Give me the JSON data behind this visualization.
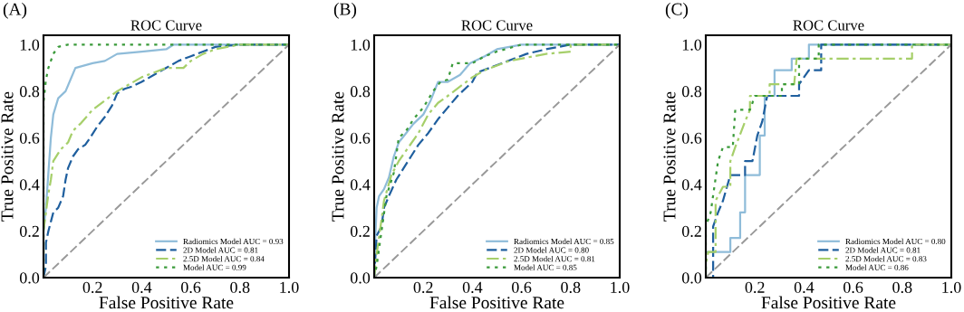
{
  "chart_data": [
    {
      "type": "line",
      "title": "ROC Curve",
      "xlabel": "False Positive Rate",
      "ylabel": "True Positive Rate",
      "annotations": [
        "(A)"
      ],
      "xlim": [
        0,
        1
      ],
      "ylim": [
        0,
        1.04
      ],
      "xticks": [
        {
          "value": 0,
          "label": null
        },
        {
          "value": 0.2,
          "label": "0.2"
        },
        {
          "value": 0.4,
          "label": "0.4"
        },
        {
          "value": 0.6,
          "label": "0.6"
        },
        {
          "value": 0.8,
          "label": "0.8"
        },
        {
          "value": 1,
          "label": "1.0"
        }
      ],
      "yticks": [
        {
          "value": 0,
          "label": "0.0"
        },
        {
          "value": 0.2,
          "label": "0.2"
        },
        {
          "value": 0.4,
          "label": "0.4"
        },
        {
          "value": 0.6,
          "label": "0.6"
        },
        {
          "value": 0.8,
          "label": "0.8"
        },
        {
          "value": 1,
          "label": "1.0"
        }
      ],
      "grid": false,
      "legend": "bottom right",
      "series": [
        {
          "name": "Radiomics Model AUC = 0.93",
          "color": "#8fbcd9",
          "line_style": "solid",
          "x": [
            0,
            0,
            0.01,
            0.02,
            0.03,
            0.04,
            0.06,
            0.09,
            0.11,
            0.13,
            0.2,
            0.25,
            0.3,
            0.4,
            0.5,
            0.53,
            1
          ],
          "values": [
            0,
            0.2,
            0.3,
            0.45,
            0.6,
            0.7,
            0.77,
            0.8,
            0.85,
            0.9,
            0.92,
            0.93,
            0.96,
            0.97,
            0.98,
            1,
            1
          ]
        },
        {
          "name": "2D Model AUC = 0.81",
          "color": "#1f5f9e",
          "line_style": "dashed",
          "x": [
            0,
            0.01,
            0.01,
            0.02,
            0.03,
            0.04,
            0.06,
            0.08,
            0.09,
            0.1,
            0.12,
            0.14,
            0.17,
            0.19,
            0.22,
            0.25,
            0.28,
            0.3,
            0.33,
            0.36,
            0.4,
            0.45,
            0.5,
            0.55,
            0.6,
            0.65,
            0.7,
            0.8,
            1
          ],
          "values": [
            0,
            0.05,
            0.15,
            0.2,
            0.24,
            0.28,
            0.3,
            0.35,
            0.42,
            0.47,
            0.52,
            0.55,
            0.57,
            0.6,
            0.65,
            0.69,
            0.74,
            0.79,
            0.81,
            0.82,
            0.84,
            0.87,
            0.9,
            0.93,
            0.95,
            0.97,
            0.99,
            1,
            1
          ]
        },
        {
          "name": "2.5D Model AUC = 0.84",
          "color": "#a6cf6a",
          "line_style": "dashdot",
          "x": [
            0,
            0,
            0.01,
            0.02,
            0.03,
            0.04,
            0.07,
            0.1,
            0.12,
            0.15,
            0.2,
            0.25,
            0.3,
            0.35,
            0.4,
            0.45,
            0.5,
            0.57,
            0.6,
            0.65,
            0.7,
            0.8,
            1
          ],
          "values": [
            0,
            0.2,
            0.28,
            0.36,
            0.42,
            0.5,
            0.55,
            0.58,
            0.63,
            0.66,
            0.72,
            0.76,
            0.8,
            0.83,
            0.86,
            0.88,
            0.9,
            0.9,
            0.93,
            0.96,
            0.98,
            1,
            1
          ]
        },
        {
          "name": "Model AUC = 0.99",
          "color": "#3a9a3a",
          "line_style": "dotted",
          "x": [
            0,
            0,
            0.01,
            0.02,
            0.04,
            0.06,
            0.1,
            1
          ],
          "values": [
            0,
            0.75,
            0.85,
            0.9,
            0.96,
            0.99,
            1,
            1
          ]
        },
        {
          "color": "#999999",
          "line_style": "dashed",
          "x": [
            0,
            1
          ],
          "values": [
            0,
            1
          ]
        }
      ]
    },
    {
      "type": "line",
      "title": "ROC Curve",
      "xlabel": "False Positive Rate",
      "ylabel": "True Positive Rate",
      "annotations": [
        "(B)"
      ],
      "xlim": [
        0,
        1
      ],
      "ylim": [
        0,
        1.04
      ],
      "xticks": [
        {
          "value": 0,
          "label": null
        },
        {
          "value": 0.2,
          "label": "0.2"
        },
        {
          "value": 0.4,
          "label": "0.4"
        },
        {
          "value": 0.6,
          "label": "0.6"
        },
        {
          "value": 0.8,
          "label": "0.8"
        },
        {
          "value": 1,
          "label": "1.0"
        }
      ],
      "yticks": [
        {
          "value": 0,
          "label": "0.0"
        },
        {
          "value": 0.2,
          "label": "0.2"
        },
        {
          "value": 0.4,
          "label": "0.4"
        },
        {
          "value": 0.6,
          "label": "0.6"
        },
        {
          "value": 0.8,
          "label": "0.8"
        },
        {
          "value": 1,
          "label": "1.0"
        }
      ],
      "grid": false,
      "legend": "bottom right",
      "series": [
        {
          "name": "Radiomics Model AUC = 0.85",
          "color": "#8fbcd9",
          "line_style": "solid",
          "x": [
            0,
            0.005,
            0.01,
            0.02,
            0.04,
            0.06,
            0.08,
            0.1,
            0.13,
            0.16,
            0.2,
            0.23,
            0.26,
            0.3,
            0.35,
            0.39,
            0.45,
            0.5,
            0.6,
            1
          ],
          "values": [
            0,
            0.18,
            0.3,
            0.35,
            0.38,
            0.43,
            0.52,
            0.58,
            0.62,
            0.66,
            0.7,
            0.76,
            0.84,
            0.84,
            0.87,
            0.92,
            0.95,
            0.98,
            1,
            1
          ]
        },
        {
          "name": "2D Model AUC = 0.80",
          "color": "#1f5f9e",
          "line_style": "dashed",
          "x": [
            0,
            0.01,
            0.03,
            0.04,
            0.06,
            0.09,
            0.12,
            0.15,
            0.18,
            0.22,
            0.26,
            0.3,
            0.34,
            0.37,
            0.4,
            0.42,
            0.47,
            0.52,
            0.57,
            0.62,
            0.7,
            0.8,
            1
          ],
          "values": [
            0,
            0.18,
            0.22,
            0.3,
            0.35,
            0.42,
            0.47,
            0.52,
            0.57,
            0.62,
            0.68,
            0.73,
            0.78,
            0.81,
            0.84,
            0.88,
            0.9,
            0.92,
            0.94,
            0.96,
            0.98,
            1,
            1
          ]
        },
        {
          "name": "2.5D Model AUC = 0.81",
          "color": "#a6cf6a",
          "line_style": "dashdot",
          "x": [
            0,
            0.01,
            0.03,
            0.04,
            0.07,
            0.1,
            0.14,
            0.18,
            0.22,
            0.26,
            0.3,
            0.35,
            0.4,
            0.45,
            0.5,
            0.55,
            0.65,
            0.7,
            0.8,
            0.8,
            1
          ],
          "values": [
            0,
            0.1,
            0.25,
            0.33,
            0.44,
            0.5,
            0.56,
            0.62,
            0.7,
            0.75,
            0.78,
            0.82,
            0.86,
            0.89,
            0.91,
            0.93,
            0.95,
            0.96,
            0.97,
            1,
            1
          ]
        },
        {
          "name": "Model AUC = 0.85",
          "color": "#3a9a3a",
          "line_style": "dotted",
          "x": [
            0,
            0.01,
            0.03,
            0.05,
            0.08,
            0.1,
            0.13,
            0.16,
            0.2,
            0.24,
            0.27,
            0.3,
            0.32,
            0.4,
            0.45,
            0.5,
            0.6,
            1
          ],
          "values": [
            0,
            0.05,
            0.2,
            0.35,
            0.45,
            0.6,
            0.63,
            0.68,
            0.73,
            0.8,
            0.84,
            0.85,
            0.92,
            0.92,
            0.95,
            0.97,
            1,
            1
          ]
        },
        {
          "color": "#999999",
          "line_style": "dashed",
          "x": [
            0,
            1
          ],
          "values": [
            0,
            1
          ]
        }
      ]
    },
    {
      "type": "line",
      "title": "ROC Curve",
      "xlabel": "False Positive Rate",
      "ylabel": "True Positive Rate",
      "annotations": [
        "(C)"
      ],
      "xlim": [
        0,
        1
      ],
      "ylim": [
        0,
        1.04
      ],
      "xticks": [
        {
          "value": 0,
          "label": null
        },
        {
          "value": 0.2,
          "label": "0.2"
        },
        {
          "value": 0.4,
          "label": "0.4"
        },
        {
          "value": 0.6,
          "label": "0.6"
        },
        {
          "value": 0.8,
          "label": "0.8"
        },
        {
          "value": 1,
          "label": "1.0"
        }
      ],
      "yticks": [
        {
          "value": 0,
          "label": "0.0"
        },
        {
          "value": 0.2,
          "label": "0.2"
        },
        {
          "value": 0.4,
          "label": "0.4"
        },
        {
          "value": 0.6,
          "label": "0.6"
        },
        {
          "value": 0.8,
          "label": "0.8"
        },
        {
          "value": 1,
          "label": "1.0"
        }
      ],
      "grid": false,
      "legend": "bottom right",
      "series": [
        {
          "name": "Radiomics Model AUC = 0.80",
          "color": "#8fbcd9",
          "line_style": "solid",
          "x": [
            0,
            0,
            0.1,
            0.1,
            0.14,
            0.14,
            0.16,
            0.16,
            0.22,
            0.22,
            0.24,
            0.24,
            0.28,
            0.28,
            0.35,
            0.35,
            0.42,
            0.42,
            1
          ],
          "values": [
            0,
            0.11,
            0.11,
            0.17,
            0.17,
            0.28,
            0.28,
            0.44,
            0.44,
            0.61,
            0.61,
            0.78,
            0.78,
            0.89,
            0.89,
            0.94,
            0.94,
            1,
            1
          ]
        },
        {
          "name": "2D Model AUC = 0.81",
          "color": "#1f5f9e",
          "line_style": "dashed",
          "x": [
            0,
            0.03,
            0.03,
            0.05,
            0.07,
            0.1,
            0.16,
            0.16,
            0.19,
            0.21,
            0.23,
            0.25,
            0.38,
            0.38,
            0.42,
            0.47,
            0.47,
            1
          ],
          "values": [
            0,
            0,
            0.22,
            0.28,
            0.33,
            0.44,
            0.44,
            0.5,
            0.5,
            0.61,
            0.67,
            0.78,
            0.78,
            0.83,
            0.89,
            0.89,
            1,
            1
          ]
        },
        {
          "name": "2.5D Model AUC = 0.83",
          "color": "#a6cf6a",
          "line_style": "dashdot",
          "x": [
            0,
            0,
            0.01,
            0.04,
            0.04,
            0.07,
            0.1,
            0.1,
            0.12,
            0.16,
            0.18,
            0.18,
            0.26,
            0.26,
            0.36,
            0.37,
            0.84,
            0.84,
            1
          ],
          "values": [
            0,
            0.06,
            0.11,
            0.11,
            0.33,
            0.39,
            0.39,
            0.5,
            0.56,
            0.67,
            0.72,
            0.78,
            0.78,
            0.83,
            0.83,
            0.94,
            0.94,
            1,
            1
          ]
        },
        {
          "name": "Model AUC = 0.86",
          "color": "#3a9a3a",
          "line_style": "dotted",
          "x": [
            0,
            0,
            0.02,
            0.05,
            0.07,
            0.11,
            0.12,
            0.18,
            0.2,
            0.31,
            0.31,
            0.38,
            0.38,
            0.46,
            0.46,
            1
          ],
          "values": [
            0,
            0.22,
            0.28,
            0.5,
            0.56,
            0.56,
            0.72,
            0.72,
            0.78,
            0.78,
            0.83,
            0.83,
            0.94,
            0.94,
            1,
            1
          ]
        },
        {
          "color": "#999999",
          "line_style": "dashed",
          "x": [
            0,
            1
          ],
          "values": [
            0,
            1
          ]
        }
      ]
    }
  ]
}
